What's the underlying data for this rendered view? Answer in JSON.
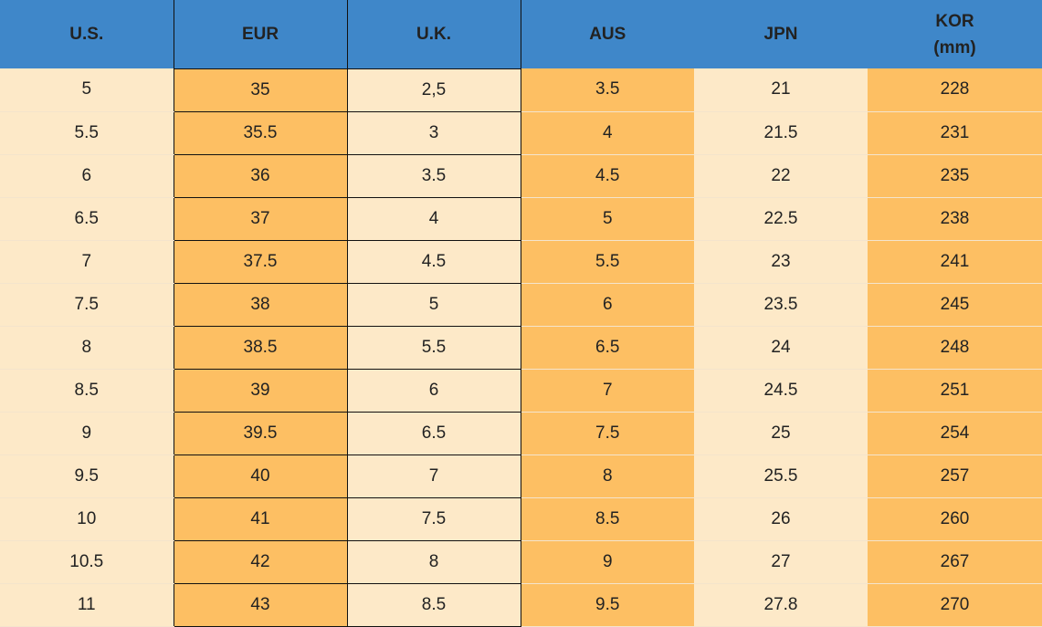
{
  "table": {
    "headers": [
      "U.S.",
      "EUR",
      "U.K.",
      "AUS",
      "JPN",
      "KOR\n(mm)"
    ],
    "rows": [
      [
        "5",
        "35",
        "2,5",
        "3.5",
        "21",
        "228"
      ],
      [
        "5.5",
        "35.5",
        "3",
        "4",
        "21.5",
        "231"
      ],
      [
        "6",
        "36",
        "3.5",
        "4.5",
        "22",
        "235"
      ],
      [
        "6.5",
        "37",
        "4",
        "5",
        "22.5",
        "238"
      ],
      [
        "7",
        "37.5",
        "4.5",
        "5.5",
        "23",
        "241"
      ],
      [
        "7.5",
        "38",
        "5",
        "6",
        "23.5",
        "245"
      ],
      [
        "8",
        "38.5",
        "5.5",
        "6.5",
        "24",
        "248"
      ],
      [
        "8.5",
        "39",
        "6",
        "7",
        "24.5",
        "251"
      ],
      [
        "9",
        "39.5",
        "6.5",
        "7.5",
        "25",
        "254"
      ],
      [
        "9.5",
        "40",
        "7",
        "8",
        "25.5",
        "257"
      ],
      [
        "10",
        "41",
        "7.5",
        "8.5",
        "26",
        "260"
      ],
      [
        "10.5",
        "42",
        "8",
        "9",
        "27",
        "267"
      ],
      [
        "11",
        "43",
        "8.5",
        "9.5",
        "27.8",
        "270"
      ]
    ]
  }
}
